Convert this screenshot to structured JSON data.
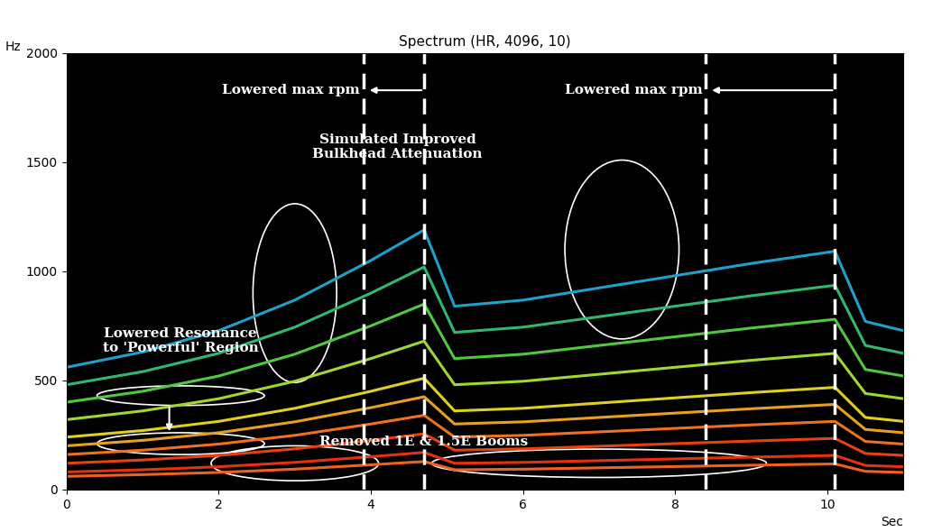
{
  "chart_data": {
    "type": "line",
    "title": "Spectrum (HR, 4096, 10)",
    "x_label": "Sec",
    "y_label": "Hz",
    "xlim": [
      0,
      11
    ],
    "ylim": [
      0,
      2000
    ],
    "xticks": [
      0,
      2,
      4,
      6,
      8,
      10
    ],
    "yticks": [
      0,
      500,
      1000,
      1500,
      2000
    ],
    "grid": false,
    "x": [
      0,
      1,
      2,
      3,
      4,
      4.7,
      5.1,
      6,
      7,
      8,
      9,
      10.1,
      10.5,
      11
    ],
    "series": [
      {
        "color": "#f06020",
        "values": [
          60,
          68,
          78,
          93,
          113,
          128,
          90,
          93,
          99,
          105,
          111,
          117,
          83,
          78
        ]
      },
      {
        "color": "#e83010",
        "values": [
          80,
          90,
          104,
          124,
          150,
          170,
          120,
          124,
          132,
          140,
          148,
          156,
          110,
          104
        ]
      },
      {
        "color": "#e84010",
        "values": [
          120,
          135,
          156,
          186,
          225,
          255,
          180,
          186,
          198,
          210,
          222,
          234,
          165,
          156
        ]
      },
      {
        "color": "#f07020",
        "values": [
          160,
          180,
          208,
          248,
          300,
          340,
          240,
          248,
          264,
          280,
          296,
          312,
          220,
          208
        ]
      },
      {
        "color": "#e8a020",
        "values": [
          200,
          225,
          260,
          310,
          375,
          425,
          300,
          310,
          330,
          350,
          370,
          390,
          275,
          260
        ]
      },
      {
        "color": "#e0d020",
        "values": [
          240,
          270,
          312,
          372,
          450,
          510,
          360,
          372,
          396,
          420,
          444,
          468,
          330,
          312
        ]
      },
      {
        "color": "#a0d830",
        "values": [
          320,
          360,
          416,
          496,
          600,
          680,
          480,
          496,
          528,
          560,
          592,
          624,
          440,
          416
        ]
      },
      {
        "color": "#50c840",
        "values": [
          400,
          450,
          520,
          620,
          750,
          850,
          600,
          620,
          660,
          700,
          740,
          780,
          550,
          520
        ]
      },
      {
        "color": "#30b870",
        "values": [
          480,
          540,
          624,
          744,
          900,
          1020,
          720,
          744,
          792,
          840,
          888,
          936,
          660,
          624
        ]
      },
      {
        "color": "#20a0c8",
        "values": [
          560,
          630,
          728,
          868,
          1050,
          1190,
          840,
          868,
          924,
          980,
          1036,
          1092,
          770,
          728
        ]
      }
    ],
    "vertical_lines": [
      3.9,
      4.7,
      8.4,
      10.1
    ],
    "annotations": [
      {
        "text": "Lowered max rpm",
        "x": 2.95,
        "y": 1830
      },
      {
        "text": "Lowered max rpm",
        "x": 7.45,
        "y": 1830
      },
      {
        "text": "Simulated Improved\nBulkhead Attenuation",
        "x": 4.35,
        "y": 1570
      },
      {
        "text": "Lowered Resonance\nto 'Powerful' Region",
        "x": 1.5,
        "y": 680
      },
      {
        "text": "Removed 1E & 1.5E Booms",
        "x": 4.7,
        "y": 220
      }
    ],
    "arrows": [
      {
        "from": [
          4.7,
          1830
        ],
        "to": [
          3.95,
          1830
        ]
      },
      {
        "from": [
          10.1,
          1830
        ],
        "to": [
          8.45,
          1830
        ]
      },
      {
        "from": [
          1.35,
          390
        ],
        "to": [
          1.35,
          255
        ]
      }
    ],
    "ellipses": [
      {
        "x": 1.5,
        "y": 430,
        "width": 2.2,
        "height": 90
      },
      {
        "x": 1.5,
        "y": 210,
        "width": 2.2,
        "height": 100
      },
      {
        "x": 3.0,
        "y": 900,
        "width": 1.1,
        "height": 820
      },
      {
        "x": 3.0,
        "y": 120,
        "width": 2.2,
        "height": 160
      },
      {
        "x": 7.0,
        "y": 120,
        "width": 4.4,
        "height": 130
      },
      {
        "x": 7.3,
        "y": 1100,
        "width": 1.5,
        "height": 820
      }
    ]
  }
}
